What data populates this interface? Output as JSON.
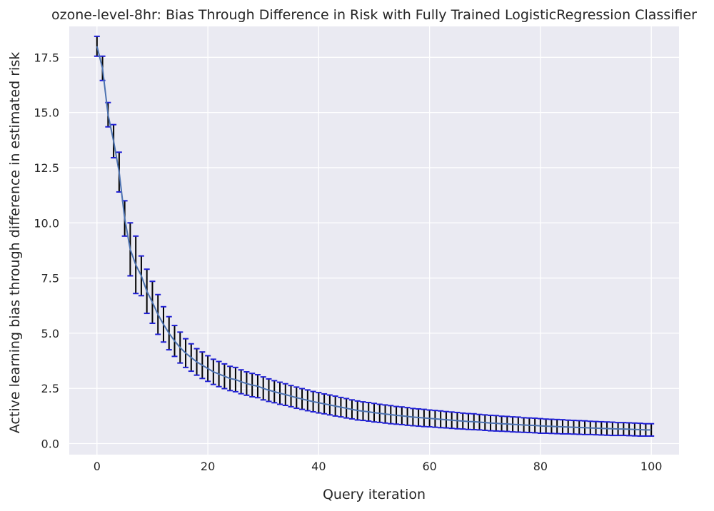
{
  "chart_data": {
    "type": "line",
    "title": "ozone-level-8hr: Bias Through Difference in Risk with Fully Trained LogisticRegression Classifier",
    "xlabel": "Query iteration",
    "ylabel": "Active learning bias through difference in estimated risk",
    "xlim": [
      -5,
      105
    ],
    "ylim": [
      -0.5,
      18.9
    ],
    "xticks": [
      0,
      20,
      40,
      60,
      80,
      100
    ],
    "xtick_labels": [
      "0",
      "20",
      "40",
      "60",
      "80",
      "100"
    ],
    "yticks": [
      0.0,
      2.5,
      5.0,
      7.5,
      10.0,
      12.5,
      15.0,
      17.5
    ],
    "ytick_labels": [
      "0.0",
      "2.5",
      "5.0",
      "7.5",
      "10.0",
      "12.5",
      "15.0",
      "17.5"
    ],
    "grid": true,
    "colors": {
      "background": "#eaeaf2",
      "grid": "#ffffff",
      "line": "#4c72b0",
      "errorbar": "#000000",
      "cap": "#1f1fd6"
    },
    "series": [
      {
        "x": [
          0,
          1,
          2,
          3,
          4,
          5,
          6,
          7,
          8,
          9,
          10,
          11,
          12,
          13,
          14,
          15,
          16,
          17,
          18,
          19,
          20,
          21,
          22,
          23,
          24,
          25,
          26,
          27,
          28,
          29,
          30,
          31,
          32,
          33,
          34,
          35,
          36,
          37,
          38,
          39,
          40,
          41,
          42,
          43,
          44,
          45,
          46,
          47,
          48,
          49,
          50,
          51,
          52,
          53,
          54,
          55,
          56,
          57,
          58,
          59,
          60,
          61,
          62,
          63,
          64,
          65,
          66,
          67,
          68,
          69,
          70,
          71,
          72,
          73,
          74,
          75,
          76,
          77,
          78,
          79,
          80,
          81,
          82,
          83,
          84,
          85,
          86,
          87,
          88,
          89,
          90,
          91,
          92,
          93,
          94,
          95,
          96,
          97,
          98,
          99,
          100
        ],
        "y": [
          18.0,
          17.0,
          14.9,
          13.7,
          12.3,
          10.2,
          8.8,
          8.1,
          7.6,
          6.9,
          6.4,
          5.85,
          5.4,
          5.0,
          4.65,
          4.35,
          4.1,
          3.9,
          3.7,
          3.55,
          3.4,
          3.25,
          3.15,
          3.05,
          2.95,
          2.9,
          2.8,
          2.72,
          2.65,
          2.6,
          2.5,
          2.42,
          2.35,
          2.28,
          2.22,
          2.15,
          2.08,
          2.02,
          1.96,
          1.9,
          1.85,
          1.8,
          1.75,
          1.7,
          1.65,
          1.6,
          1.55,
          1.5,
          1.47,
          1.44,
          1.4,
          1.37,
          1.34,
          1.31,
          1.28,
          1.26,
          1.23,
          1.2,
          1.18,
          1.16,
          1.14,
          1.12,
          1.1,
          1.08,
          1.06,
          1.04,
          1.02,
          1.0,
          0.99,
          0.97,
          0.95,
          0.93,
          0.92,
          0.9,
          0.89,
          0.87,
          0.86,
          0.84,
          0.83,
          0.82,
          0.8,
          0.79,
          0.78,
          0.77,
          0.76,
          0.75,
          0.74,
          0.73,
          0.72,
          0.71,
          0.7,
          0.69,
          0.68,
          0.67,
          0.66,
          0.66,
          0.65,
          0.64,
          0.63,
          0.62,
          0.62
        ],
        "err": [
          0.45,
          0.55,
          0.55,
          0.75,
          0.9,
          0.8,
          1.2,
          1.3,
          0.9,
          1.0,
          0.95,
          0.9,
          0.8,
          0.75,
          0.7,
          0.7,
          0.65,
          0.62,
          0.6,
          0.6,
          0.58,
          0.57,
          0.57,
          0.56,
          0.55,
          0.55,
          0.54,
          0.53,
          0.53,
          0.52,
          0.52,
          0.51,
          0.5,
          0.5,
          0.49,
          0.48,
          0.48,
          0.47,
          0.47,
          0.46,
          0.46,
          0.45,
          0.45,
          0.45,
          0.44,
          0.44,
          0.43,
          0.43,
          0.42,
          0.42,
          0.42,
          0.41,
          0.41,
          0.41,
          0.4,
          0.4,
          0.4,
          0.39,
          0.39,
          0.39,
          0.38,
          0.38,
          0.38,
          0.37,
          0.37,
          0.37,
          0.36,
          0.36,
          0.36,
          0.35,
          0.35,
          0.35,
          0.35,
          0.34,
          0.34,
          0.34,
          0.34,
          0.33,
          0.33,
          0.33,
          0.33,
          0.32,
          0.32,
          0.32,
          0.32,
          0.31,
          0.31,
          0.31,
          0.31,
          0.3,
          0.3,
          0.3,
          0.3,
          0.3,
          0.29,
          0.29,
          0.29,
          0.29,
          0.29,
          0.28,
          0.28
        ]
      }
    ]
  }
}
